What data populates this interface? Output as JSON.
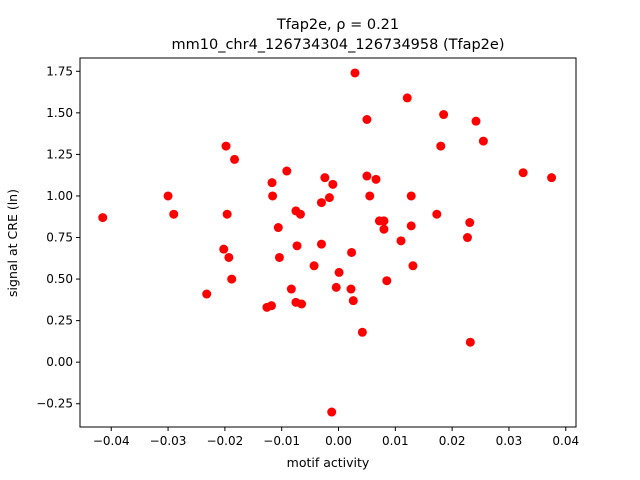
{
  "chart_data": {
    "type": "scatter",
    "title_line1": "Tfap2e, ρ = 0.21",
    "title_line2": "mm10_chr4_126734304_126734958 (Tfap2e)",
    "xlabel": "motif activity",
    "ylabel": "signal at CRE (ln)",
    "xlim": [
      -0.0455,
      0.0418
    ],
    "ylim": [
      -0.39,
      1.83
    ],
    "xticks": [
      -0.04,
      -0.03,
      -0.02,
      -0.01,
      0.0,
      0.01,
      0.02,
      0.03,
      0.04
    ],
    "xtick_labels": [
      "−0.04",
      "−0.03",
      "−0.02",
      "−0.01",
      "0.00",
      "0.01",
      "0.02",
      "0.03",
      "0.04"
    ],
    "yticks": [
      -0.25,
      0.0,
      0.25,
      0.5,
      0.75,
      1.0,
      1.25,
      1.5,
      1.75
    ],
    "ytick_labels": [
      "−0.25",
      "0.00",
      "0.25",
      "0.50",
      "0.75",
      "1.00",
      "1.25",
      "1.50",
      "1.75"
    ],
    "marker_color": "#ff0000",
    "grid": false,
    "points": [
      {
        "x": -0.0415,
        "y": 0.87
      },
      {
        "x": -0.03,
        "y": 1.0
      },
      {
        "x": -0.029,
        "y": 0.89
      },
      {
        "x": -0.0232,
        "y": 0.41
      },
      {
        "x": -0.0202,
        "y": 0.68
      },
      {
        "x": -0.0198,
        "y": 1.3
      },
      {
        "x": -0.0196,
        "y": 0.89
      },
      {
        "x": -0.0193,
        "y": 0.63
      },
      {
        "x": -0.0188,
        "y": 0.5
      },
      {
        "x": -0.0183,
        "y": 1.22
      },
      {
        "x": -0.0126,
        "y": 0.33
      },
      {
        "x": -0.0118,
        "y": 0.34
      },
      {
        "x": -0.0117,
        "y": 1.08
      },
      {
        "x": -0.0116,
        "y": 1.0
      },
      {
        "x": -0.0106,
        "y": 0.81
      },
      {
        "x": -0.0104,
        "y": 0.63
      },
      {
        "x": -0.0091,
        "y": 1.15
      },
      {
        "x": -0.0083,
        "y": 0.44
      },
      {
        "x": -0.0075,
        "y": 0.91
      },
      {
        "x": -0.0075,
        "y": 0.36
      },
      {
        "x": -0.0073,
        "y": 0.7
      },
      {
        "x": -0.0067,
        "y": 0.89
      },
      {
        "x": -0.0065,
        "y": 0.35
      },
      {
        "x": -0.0043,
        "y": 0.58
      },
      {
        "x": -0.003,
        "y": 0.96
      },
      {
        "x": -0.003,
        "y": 0.71
      },
      {
        "x": -0.0024,
        "y": 1.11
      },
      {
        "x": -0.0016,
        "y": 0.99
      },
      {
        "x": -0.0012,
        "y": -0.3
      },
      {
        "x": -0.001,
        "y": 1.07
      },
      {
        "x": -0.0004,
        "y": 0.45
      },
      {
        "x": 0.0001,
        "y": 0.54
      },
      {
        "x": 0.0022,
        "y": 0.44
      },
      {
        "x": 0.0023,
        "y": 0.66
      },
      {
        "x": 0.0026,
        "y": 0.37
      },
      {
        "x": 0.0029,
        "y": 1.74
      },
      {
        "x": 0.0042,
        "y": 0.18
      },
      {
        "x": 0.005,
        "y": 1.46
      },
      {
        "x": 0.005,
        "y": 1.12
      },
      {
        "x": 0.0055,
        "y": 1.0
      },
      {
        "x": 0.0066,
        "y": 1.1
      },
      {
        "x": 0.0072,
        "y": 0.85
      },
      {
        "x": 0.008,
        "y": 0.85
      },
      {
        "x": 0.008,
        "y": 0.8
      },
      {
        "x": 0.0085,
        "y": 0.49
      },
      {
        "x": 0.011,
        "y": 0.73
      },
      {
        "x": 0.0121,
        "y": 1.59
      },
      {
        "x": 0.0128,
        "y": 1.0
      },
      {
        "x": 0.0128,
        "y": 0.82
      },
      {
        "x": 0.0131,
        "y": 0.58
      },
      {
        "x": 0.0173,
        "y": 0.89
      },
      {
        "x": 0.018,
        "y": 1.3
      },
      {
        "x": 0.0185,
        "y": 1.49
      },
      {
        "x": 0.0227,
        "y": 0.75
      },
      {
        "x": 0.0231,
        "y": 0.84
      },
      {
        "x": 0.0232,
        "y": 0.12
      },
      {
        "x": 0.0242,
        "y": 1.45
      },
      {
        "x": 0.0255,
        "y": 1.33
      },
      {
        "x": 0.0325,
        "y": 1.14
      },
      {
        "x": 0.0375,
        "y": 1.11
      }
    ]
  }
}
